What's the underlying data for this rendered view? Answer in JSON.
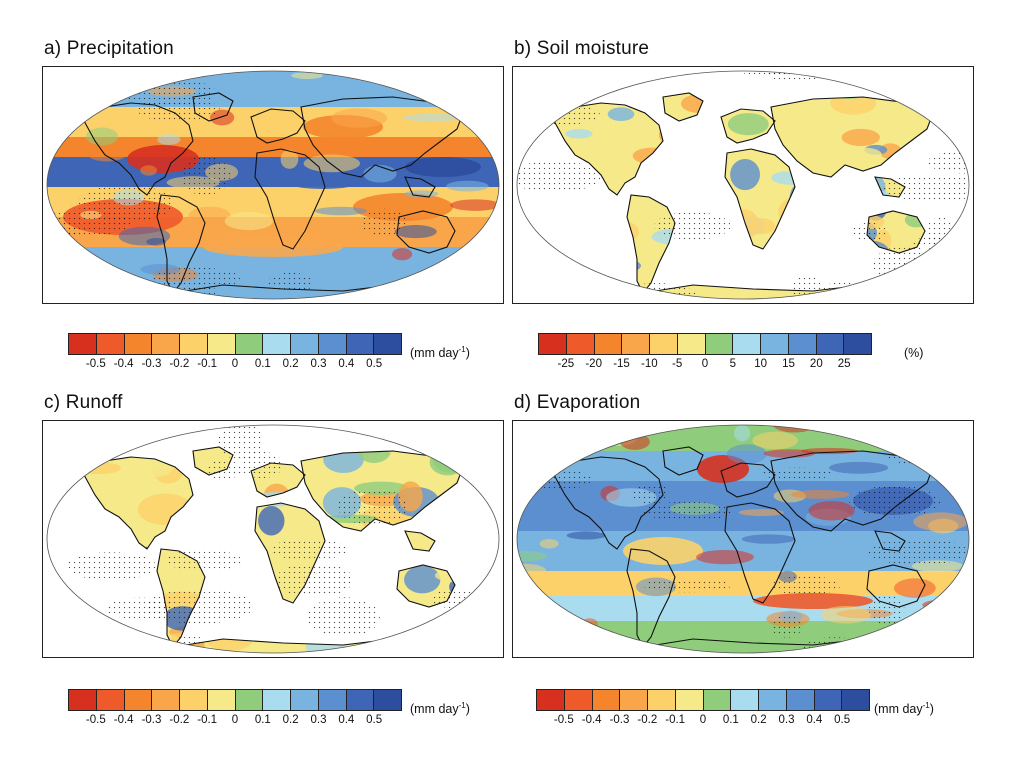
{
  "panels": [
    {
      "title": "a) Precipitation",
      "kind": "ocean"
    },
    {
      "title": "b) Soil moisture",
      "kind": "land"
    },
    {
      "title": "c) Runoff",
      "kind": "land"
    },
    {
      "title": "d) Evaporation",
      "kind": "ocean"
    }
  ],
  "colorbars": [
    {
      "ticks": [
        "-0.5",
        "-0.4",
        "-0.3",
        "-0.2",
        "-0.1",
        "0",
        "0.1",
        "0.2",
        "0.3",
        "0.4",
        "0.5"
      ],
      "unit_base": "(mm day",
      "unit_sup": "-1",
      "unit_end": ")"
    },
    {
      "ticks": [
        "-25",
        "-20",
        "-15",
        "-10",
        "-5",
        "0",
        "5",
        "10",
        "15",
        "20",
        "25"
      ],
      "unit_base": "(%)",
      "unit_sup": "",
      "unit_end": ""
    },
    {
      "ticks": [
        "-0.5",
        "-0.4",
        "-0.3",
        "-0.2",
        "-0.1",
        "0",
        "0.1",
        "0.2",
        "0.3",
        "0.4",
        "0.5"
      ],
      "unit_base": "(mm day",
      "unit_sup": "-1",
      "unit_end": ")"
    },
    {
      "ticks": [
        "-0.5",
        "-0.4",
        "-0.3",
        "-0.2",
        "-0.1",
        "0",
        "0.1",
        "0.2",
        "0.3",
        "0.4",
        "0.5"
      ],
      "unit_base": "(mm day",
      "unit_sup": "-1",
      "unit_end": ")"
    }
  ],
  "palette": [
    "#d7301f",
    "#ef5a2a",
    "#f4852d",
    "#f9a64a",
    "#fcd16a",
    "#f5e98a",
    "#8fcd7d",
    "#a9dcef",
    "#79b4e0",
    "#5b8fd0",
    "#3f66b6",
    "#2d4e9f"
  ]
}
